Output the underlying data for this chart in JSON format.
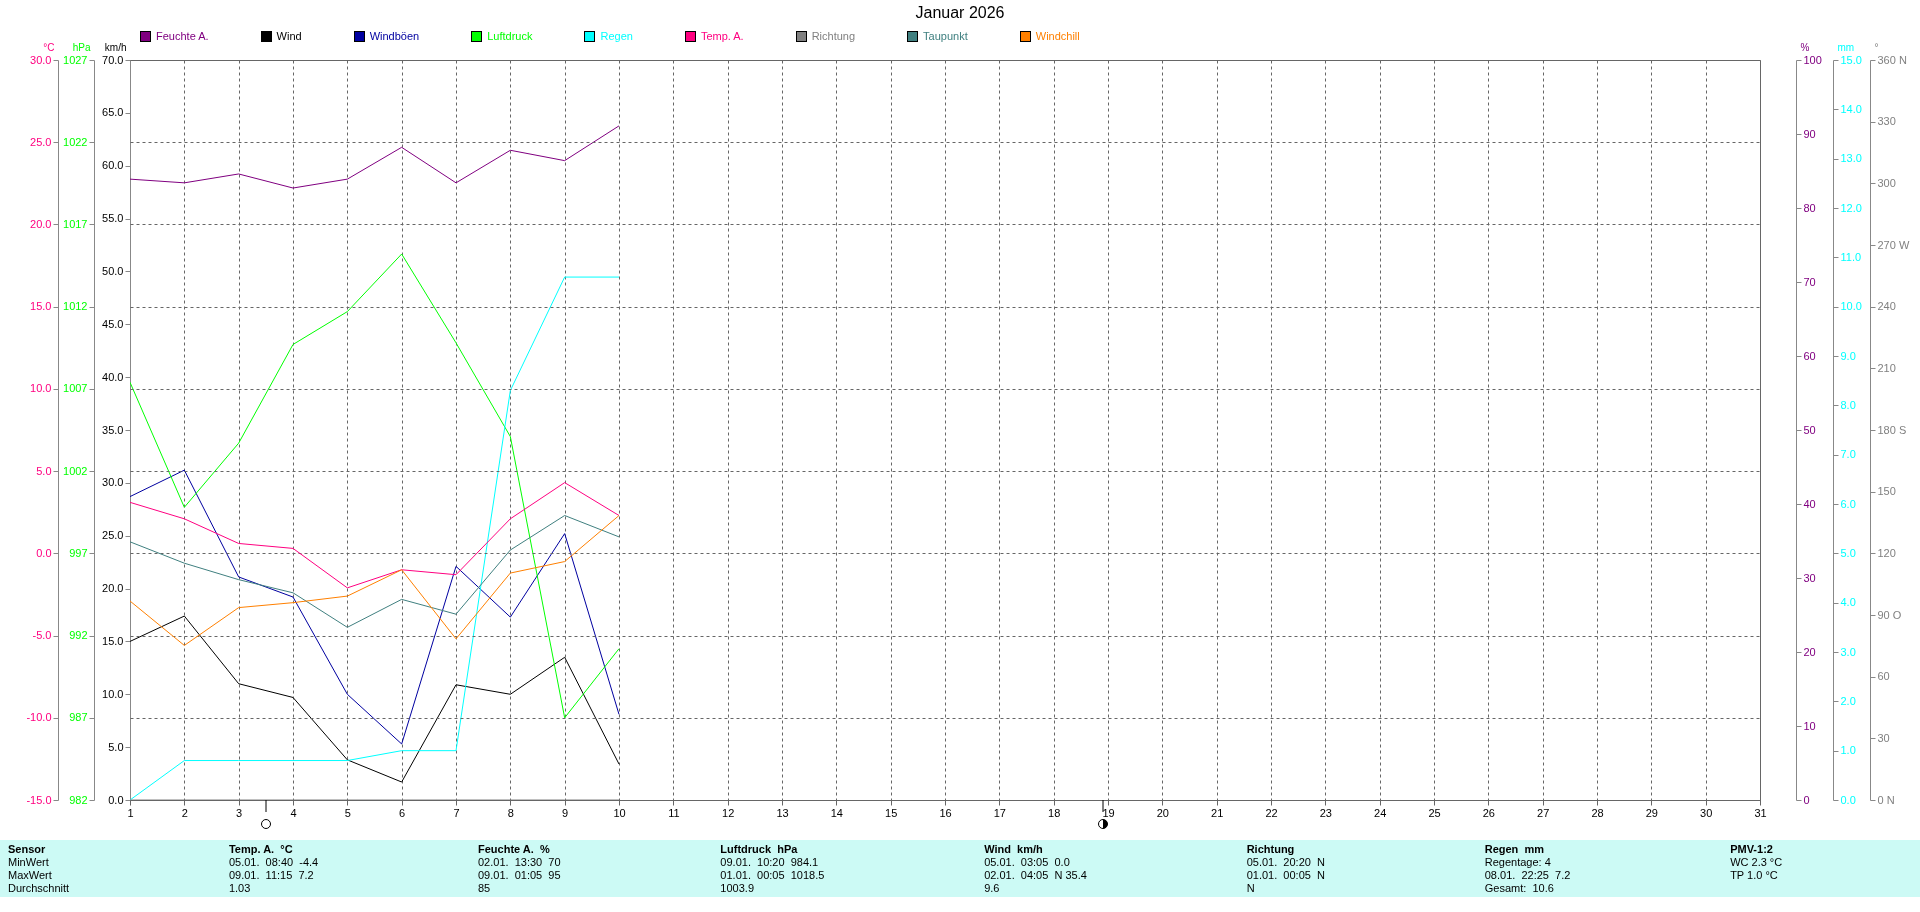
{
  "chart_data": [
    {
      "type": "line",
      "title": "Januar 2026",
      "x": [
        1,
        2,
        3,
        4,
        5,
        6,
        7,
        8,
        9,
        10
      ],
      "xlim": [
        1,
        31
      ],
      "xticks": [
        1,
        2,
        3,
        4,
        5,
        6,
        7,
        8,
        9,
        10,
        11,
        12,
        13,
        14,
        15,
        16,
        17,
        18,
        19,
        20,
        21,
        22,
        23,
        24,
        25,
        26,
        27,
        28,
        29,
        30,
        31
      ],
      "ylabel": "km/h",
      "ylim": [
        0,
        70
      ],
      "yticks": [
        {
          "value": 0,
          "label": "0.0"
        },
        {
          "value": 5,
          "label": "5.0"
        },
        {
          "value": 10,
          "label": "10.0"
        },
        {
          "value": 15,
          "label": "15.0"
        },
        {
          "value": 20,
          "label": "20.0"
        },
        {
          "value": 25,
          "label": "25.0"
        },
        {
          "value": 30,
          "label": "30.0"
        },
        {
          "value": 35,
          "label": "35.0"
        },
        {
          "value": 40,
          "label": "40.0"
        },
        {
          "value": 45,
          "label": "45.0"
        },
        {
          "value": 50,
          "label": "50.0"
        },
        {
          "value": 55,
          "label": "55.0"
        },
        {
          "value": 60,
          "label": "60.0"
        },
        {
          "value": 65,
          "label": "65.0"
        },
        {
          "value": 70,
          "label": "70.0"
        }
      ],
      "y2label": "%",
      "y2lim": [
        0,
        100
      ],
      "y2ticks": [
        0,
        10,
        20,
        30,
        40,
        50,
        60,
        70,
        80,
        90,
        100
      ],
      "series": [
        {
          "name": "Feuchte A.",
          "color": "#800080",
          "axis": "y2",
          "values": [
            83.9,
            83.4,
            84.6,
            82.7,
            83.9,
            88.2,
            83.4,
            87.8,
            86.4,
            91.1
          ]
        },
        {
          "name": "Wind",
          "color": "#000000",
          "values": [
            15.0,
            17.4,
            11.0,
            9.7,
            3.8,
            1.7,
            10.9,
            10.0,
            13.5,
            3.4
          ]
        },
        {
          "name": "Windböen",
          "color": "#0000a0",
          "values": [
            28.7,
            31.2,
            21.1,
            19.2,
            10.0,
            5.3,
            22.1,
            17.3,
            25.2,
            8.1
          ]
        }
      ],
      "grid": "x",
      "legend": "top",
      "annotations": [
        "Sensor",
        "MinWert",
        "MaxWert",
        "Durchschnitt",
        "Temp. A.  °C",
        "05.01.  08:40  -4.4",
        "09.01.  11:15  7.2",
        "1.03",
        "Feuchte A.  %",
        "02.01.  13:30  70",
        "09.01.  01:05  95",
        "85",
        "Luftdruck  hPa",
        "09.01.  10:20  984.1",
        "01.01.  00:05  1018.5",
        "1003.9",
        "Wind  km/h",
        "05.01.  03:05  0.0",
        "02.01.  04:05  N 35.4",
        "9.6",
        "Richtung",
        "05.01.  20:20  N",
        "01.01.  00:05  N",
        "N",
        "Regen  mm",
        "Regentage: 4",
        "08.01.  22:25  7.2",
        "Gesamt:  10.6",
        "PMV-1:2",
        "WC 2.3 °C",
        "TP 1.0 °C"
      ]
    },
    {
      "type": "line",
      "x": [
        1,
        2,
        3,
        4,
        5,
        6,
        7,
        8,
        9,
        10
      ],
      "xlim": [
        1,
        31
      ],
      "ylabel": "hPa",
      "ylim": [
        982,
        1027
      ],
      "yticks": [
        982,
        987,
        992,
        997,
        1002,
        1007,
        1012,
        1017,
        1022,
        1027
      ],
      "y2label": "mm",
      "y2lim": [
        0,
        15
      ],
      "y2ticks": [
        {
          "value": 0,
          "label": "0.0"
        },
        {
          "value": 1,
          "label": "1.0"
        },
        {
          "value": 2,
          "label": "2.0"
        },
        {
          "value": 3,
          "label": "3.0"
        },
        {
          "value": 4,
          "label": "4.0"
        },
        {
          "value": 5,
          "label": "5.0"
        },
        {
          "value": 6,
          "label": "6.0"
        },
        {
          "value": 7,
          "label": "7.0"
        },
        {
          "value": 8,
          "label": "8.0"
        },
        {
          "value": 9,
          "label": "9.0"
        },
        {
          "value": 10,
          "label": "10.0"
        },
        {
          "value": 11,
          "label": "11.0"
        },
        {
          "value": 12,
          "label": "12.0"
        },
        {
          "value": 13,
          "label": "13.0"
        },
        {
          "value": 14,
          "label": "14.0"
        },
        {
          "value": 15,
          "label": "15.0"
        }
      ],
      "series": [
        {
          "name": "Luftdruck",
          "color": "#00ff00",
          "values": [
            1007.4,
            999.8,
            1003.7,
            1009.7,
            1011.7,
            1015.2,
            1009.8,
            1004.1,
            987.0,
            991.2
          ]
        },
        {
          "name": "Regen",
          "color": "#00ffff",
          "axis": "y2",
          "values": [
            0,
            0.8,
            0.8,
            0.8,
            0.8,
            1.0,
            1.0,
            8.3,
            10.6,
            10.6
          ]
        }
      ],
      "legend": "top",
      "tick_labels": "y"
    },
    {
      "type": "line",
      "x": [
        1,
        2,
        3,
        4,
        5,
        6,
        7,
        8,
        9,
        10
      ],
      "xlim": [
        1,
        31
      ],
      "ylabel": "°C",
      "ylim": [
        -15,
        30
      ],
      "yticks": [
        {
          "value": -15,
          "label": "-15.0"
        },
        {
          "value": -10,
          "label": "-10.0"
        },
        {
          "value": -5,
          "label": "-5.0"
        },
        {
          "value": 0,
          "label": "0.0"
        },
        {
          "value": 5,
          "label": "5.0"
        },
        {
          "value": 10,
          "label": "10.0"
        },
        {
          "value": 15,
          "label": "15.0"
        },
        {
          "value": 20,
          "label": "20.0"
        },
        {
          "value": 25,
          "label": "25.0"
        },
        {
          "value": 30,
          "label": "30.0"
        }
      ],
      "y2label": "°",
      "y2lim": [
        0,
        360
      ],
      "y2ticks": [
        {
          "value": 0,
          "label": "0  N"
        },
        30,
        60,
        {
          "value": 90,
          "label": "90  O"
        },
        120,
        150,
        {
          "value": 180,
          "label": "180 S"
        },
        210,
        240,
        {
          "value": 270,
          "label": "270 W"
        },
        300,
        330,
        {
          "value": 360,
          "label": "360 N"
        }
      ],
      "series": [
        {
          "name": "Temp. A.",
          "color": "#ff0080",
          "values": [
            3.1,
            2.1,
            0.6,
            0.3,
            -2.1,
            -1.0,
            -1.3,
            2.1,
            4.3,
            2.3
          ]
        },
        {
          "name": "Richtung",
          "color": "#808080",
          "axis": "y2",
          "values": [
            0,
            0,
            0,
            0,
            0,
            0,
            0,
            0,
            0,
            0
          ]
        },
        {
          "name": "Taupunkt",
          "color": "#408080",
          "values": [
            0.7,
            -0.6,
            -1.6,
            -2.4,
            -4.5,
            -2.8,
            -3.7,
            0.2,
            2.3,
            1.0
          ]
        },
        {
          "name": "Windchill",
          "color": "#ff8000",
          "values": [
            -2.9,
            -5.6,
            -3.3,
            -3.0,
            -2.6,
            -1.0,
            -5.2,
            -1.2,
            -0.5,
            2.3
          ]
        }
      ],
      "grid": "y",
      "legend": "top",
      "tick_labels": "y"
    }
  ]
}
